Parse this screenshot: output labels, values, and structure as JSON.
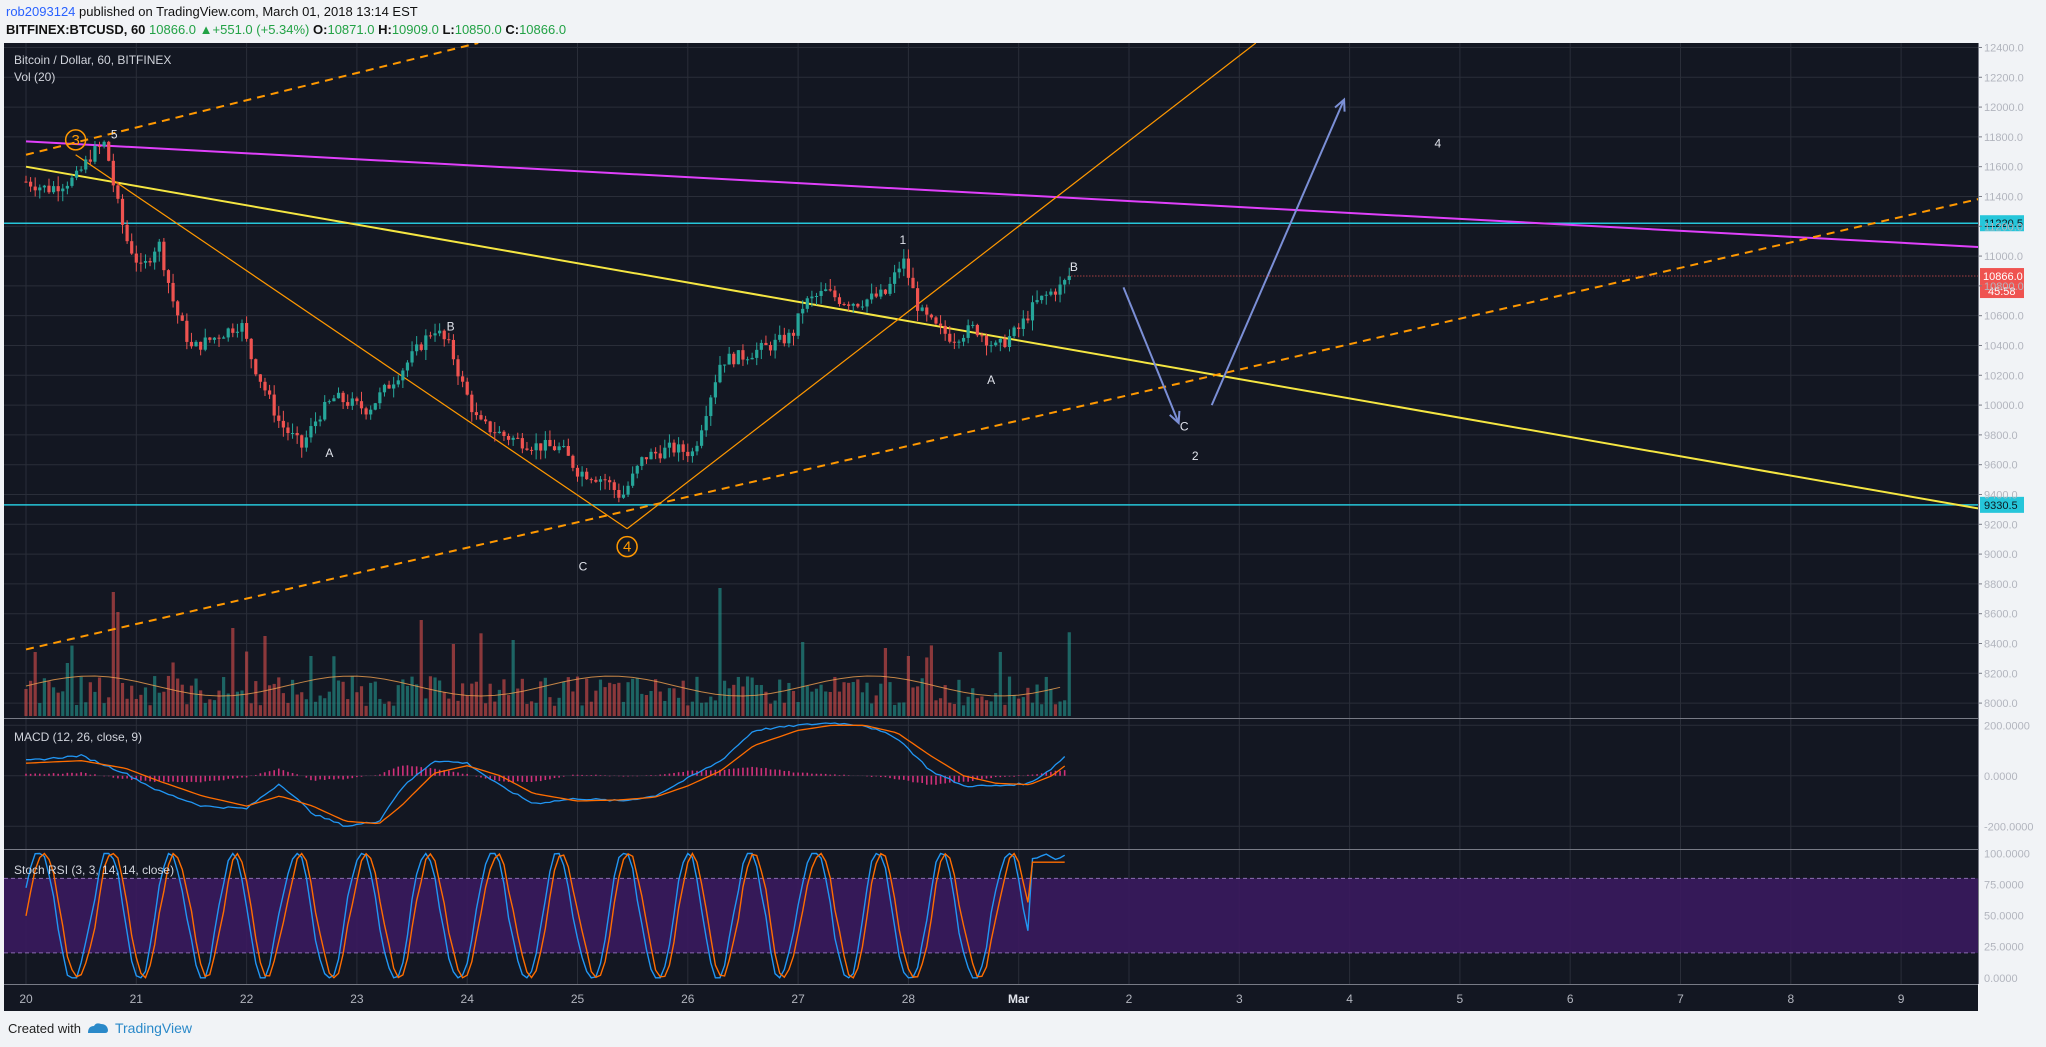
{
  "header": {
    "author": "rob2093124",
    "published": " published on TradingView.com, March 01, 2018 13:14 EST",
    "symbol": "BITFINEX:BTCUSD, 60",
    "last": "10866.0",
    "change": "+551.0 (+5.34%)",
    "o_label": "O:",
    "o_value": "10871.0",
    "h_label": "H:",
    "h_value": "10909.0",
    "l_label": "L:",
    "l_value": "10850.0",
    "c_label": "C:",
    "c_value": "10866.0",
    "up_arrow": "▲"
  },
  "footer": {
    "created": "Created with",
    "brand": "TradingView"
  },
  "colors": {
    "background": "#131722",
    "grid": "#2a2e39",
    "up": "#26a69a",
    "down": "#ef5350",
    "trend_magenta": "#e040fb",
    "trend_yellow": "#f5e642",
    "trend_orange": "#ff9800",
    "support": "#26c6da",
    "arrow": "#7b8fd6",
    "macd": "#2196f3",
    "signal": "#ff6d00",
    "stoch_band": "#3a1a5e"
  },
  "chart_data": {
    "type": "candlestick",
    "title": "Bitcoin / Dollar, 60, BITFINEX",
    "volume_label": "Vol (20)",
    "x_ticks": [
      "20",
      "21",
      "22",
      "23",
      "24",
      "25",
      "26",
      "27",
      "28",
      "Mar",
      "2",
      "3",
      "4",
      "5",
      "6",
      "7",
      "8",
      "9"
    ],
    "price_ticks": [
      12400,
      12200,
      12000,
      11800,
      11600,
      11400,
      11200,
      11000,
      10800,
      10600,
      10400,
      10200,
      10000,
      9800,
      9600,
      9400,
      9200,
      9000,
      8800,
      8600,
      8400,
      8200,
      8000
    ],
    "ylim": [
      7900,
      12430
    ],
    "current_price_label": "10866.0",
    "countdown_label": "45:58",
    "levels": [
      {
        "label": "11220.5",
        "value": 11220.5
      },
      {
        "label": "9330.5",
        "value": 9330.5
      }
    ],
    "price_path": [
      [
        0,
        11500
      ],
      [
        0.2,
        11450
      ],
      [
        0.45,
        11520
      ],
      [
        0.6,
        11690
      ],
      [
        0.72,
        11760
      ],
      [
        0.8,
        11450
      ],
      [
        0.9,
        11130
      ],
      [
        1.05,
        10900
      ],
      [
        1.2,
        11100
      ],
      [
        1.35,
        10650
      ],
      [
        1.5,
        10380
      ],
      [
        1.7,
        10450
      ],
      [
        1.95,
        10550
      ],
      [
        2.05,
        10300
      ],
      [
        2.3,
        9880
      ],
      [
        2.5,
        9720
      ],
      [
        2.65,
        9930
      ],
      [
        2.8,
        10050
      ],
      [
        3.1,
        9970
      ],
      [
        3.4,
        10230
      ],
      [
        3.7,
        10520
      ],
      [
        3.85,
        10380
      ],
      [
        3.95,
        10150
      ],
      [
        4.1,
        9880
      ],
      [
        4.35,
        9790
      ],
      [
        4.6,
        9730
      ],
      [
        4.85,
        9710
      ],
      [
        5.0,
        9560
      ],
      [
        5.25,
        9500
      ],
      [
        5.4,
        9380
      ],
      [
        5.6,
        9650
      ],
      [
        5.85,
        9710
      ],
      [
        6.05,
        9680
      ],
      [
        6.15,
        9930
      ],
      [
        6.3,
        10300
      ],
      [
        6.5,
        10330
      ],
      [
        6.75,
        10400
      ],
      [
        6.95,
        10470
      ],
      [
        7.05,
        10680
      ],
      [
        7.25,
        10760
      ],
      [
        7.4,
        10700
      ],
      [
        7.55,
        10690
      ],
      [
        7.8,
        10750
      ],
      [
        7.95,
        10980
      ],
      [
        8.1,
        10630
      ],
      [
        8.25,
        10520
      ],
      [
        8.4,
        10450
      ],
      [
        8.6,
        10520
      ],
      [
        8.8,
        10380
      ],
      [
        9.0,
        10510
      ],
      [
        9.15,
        10680
      ],
      [
        9.3,
        10760
      ],
      [
        9.4,
        10800
      ],
      [
        9.45,
        10866
      ]
    ],
    "wave_labels": [
      {
        "text": "3",
        "x": 0.45,
        "y": 11780,
        "circled": true
      },
      {
        "text": "5",
        "x": 0.8,
        "y": 11790,
        "circled": false
      },
      {
        "text": "A",
        "x": 2.75,
        "y": 9650,
        "circled": false
      },
      {
        "text": "B",
        "x": 3.85,
        "y": 10500,
        "circled": false
      },
      {
        "text": "4",
        "x": 5.45,
        "y": 9050,
        "circled": true
      },
      {
        "text": "C",
        "x": 5.05,
        "y": 8890,
        "circled": false
      },
      {
        "text": "1",
        "x": 7.95,
        "y": 11080,
        "circled": false
      },
      {
        "text": "A",
        "x": 8.75,
        "y": 10140,
        "circled": false
      },
      {
        "text": "B",
        "x": 9.5,
        "y": 10900,
        "circled": false
      },
      {
        "text": "C",
        "x": 10.5,
        "y": 9830,
        "circled": false
      },
      {
        "text": "2",
        "x": 10.6,
        "y": 9630,
        "circled": false
      },
      {
        "text": "4",
        "x": 12.8,
        "y": 11730,
        "circled": false
      }
    ],
    "trendlines": [
      {
        "name": "magenta",
        "from": [
          0,
          11770
        ],
        "to": [
          17.98,
          11050
        ],
        "dashed": false
      },
      {
        "name": "yellow",
        "from": [
          0,
          11600
        ],
        "to": [
          17.98,
          9270
        ],
        "dashed": false
      },
      {
        "name": "orange-upper",
        "from": [
          0,
          11680
        ],
        "to": [
          4.1,
          12430
        ],
        "dashed": true
      },
      {
        "name": "orange-lower",
        "from": [
          0,
          8360
        ],
        "to": [
          17.98,
          11430
        ],
        "dashed": true
      },
      {
        "name": "orange-fan-down",
        "from": [
          0.45,
          11680
        ],
        "to": [
          5.45,
          9170
        ],
        "dashed": false
      },
      {
        "name": "orange-fan-up",
        "from": [
          5.45,
          9170
        ],
        "to": [
          11.15,
          12430
        ],
        "dashed": false
      }
    ],
    "arrows": [
      {
        "from": [
          9.95,
          10790
        ],
        "to": [
          10.45,
          9880
        ]
      },
      {
        "from": [
          10.75,
          10000
        ],
        "to": [
          11.95,
          12050
        ]
      }
    ],
    "macd": {
      "label": "MACD (12, 26, close, 9)",
      "ticks": [
        "200.0000",
        "0.0000",
        "-200.0000"
      ],
      "tick_values": [
        200,
        0,
        -200
      ],
      "ylim": [
        -290,
        225
      ],
      "macd_path": [
        [
          0,
          60
        ],
        [
          0.5,
          80
        ],
        [
          0.9,
          10
        ],
        [
          1.2,
          -60
        ],
        [
          1.6,
          -120
        ],
        [
          2.0,
          -130
        ],
        [
          2.3,
          -30
        ],
        [
          2.6,
          -150
        ],
        [
          2.9,
          -200
        ],
        [
          3.2,
          -180
        ],
        [
          3.4,
          -50
        ],
        [
          3.7,
          60
        ],
        [
          4.0,
          50
        ],
        [
          4.3,
          -40
        ],
        [
          4.6,
          -110
        ],
        [
          5.0,
          -90
        ],
        [
          5.4,
          -100
        ],
        [
          5.7,
          -80
        ],
        [
          6.0,
          -10
        ],
        [
          6.3,
          60
        ],
        [
          6.6,
          180
        ],
        [
          7.0,
          200
        ],
        [
          7.3,
          210
        ],
        [
          7.6,
          200
        ],
        [
          7.9,
          150
        ],
        [
          8.2,
          20
        ],
        [
          8.5,
          -40
        ],
        [
          8.8,
          -40
        ],
        [
          9.1,
          -30
        ],
        [
          9.3,
          30
        ],
        [
          9.45,
          90
        ]
      ],
      "signal_path": [
        [
          0,
          50
        ],
        [
          0.5,
          60
        ],
        [
          0.9,
          30
        ],
        [
          1.2,
          -20
        ],
        [
          1.6,
          -80
        ],
        [
          2.0,
          -120
        ],
        [
          2.3,
          -80
        ],
        [
          2.6,
          -120
        ],
        [
          2.9,
          -180
        ],
        [
          3.2,
          -190
        ],
        [
          3.4,
          -120
        ],
        [
          3.7,
          10
        ],
        [
          4.0,
          40
        ],
        [
          4.3,
          0
        ],
        [
          4.6,
          -70
        ],
        [
          5.0,
          -100
        ],
        [
          5.4,
          -95
        ],
        [
          5.7,
          -85
        ],
        [
          6.0,
          -40
        ],
        [
          6.3,
          20
        ],
        [
          6.6,
          120
        ],
        [
          7.0,
          180
        ],
        [
          7.3,
          200
        ],
        [
          7.6,
          200
        ],
        [
          7.9,
          170
        ],
        [
          8.2,
          80
        ],
        [
          8.5,
          0
        ],
        [
          8.8,
          -30
        ],
        [
          9.1,
          -35
        ],
        [
          9.3,
          0
        ],
        [
          9.45,
          50
        ]
      ]
    },
    "stoch_rsi": {
      "label": "Stoch RSI (3, 3, 14, 14, close)",
      "ticks": [
        "100.0000",
        "75.0000",
        "50.0000",
        "25.0000",
        "0.0000"
      ],
      "tick_values": [
        100,
        75,
        50,
        25,
        0
      ],
      "band": [
        20,
        80
      ],
      "ylim": [
        -5,
        102
      ]
    }
  }
}
